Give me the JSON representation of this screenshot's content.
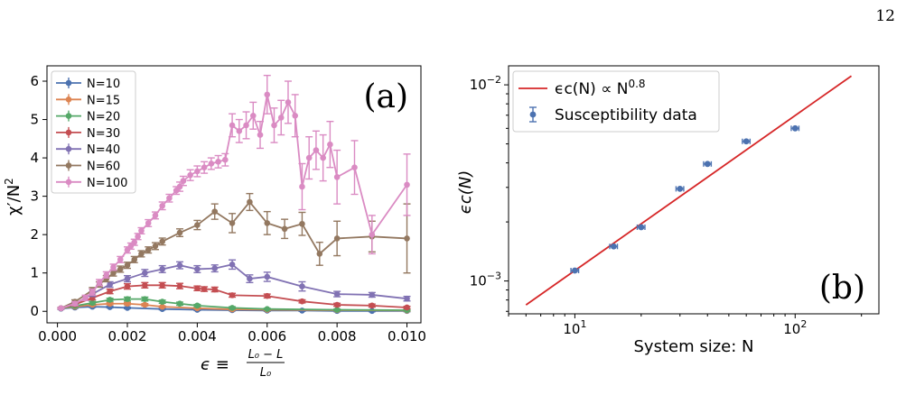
{
  "page_number": "12",
  "colors": {
    "N10": "#4c72b0",
    "N15": "#dd8452",
    "N20": "#55a868",
    "N30": "#c44e52",
    "N40": "#8172b3",
    "N60": "#937860",
    "N100": "#da8bc3",
    "fit": "#d62728",
    "data": "#4c72b0"
  },
  "chart_data": [
    {
      "type": "line",
      "panel_label": "(a)",
      "xlabel_parts": {
        "epsilon": "ϵ ≡",
        "numerator": "L₀ − L",
        "denominator": "L₀"
      },
      "ylabel_parts": {
        "base": "χ′/N",
        "exp": "2"
      },
      "xlim": [
        -0.0003,
        0.0104
      ],
      "ylim": [
        -0.3,
        6.4
      ],
      "xticks": [
        0.0,
        0.002,
        0.004,
        0.006,
        0.008,
        0.01
      ],
      "xtick_labels": [
        "0.000",
        "0.002",
        "0.004",
        "0.006",
        "0.008",
        "0.010"
      ],
      "yticks": [
        0,
        1,
        2,
        3,
        4,
        5,
        6
      ],
      "ytick_labels": [
        "0",
        "1",
        "2",
        "3",
        "4",
        "5",
        "6"
      ],
      "legend_position": "top-left",
      "series": [
        {
          "name": "N=10",
          "color_key": "N10",
          "x": [
            0.0001,
            0.0005,
            0.001,
            0.0015,
            0.002,
            0.003,
            0.004,
            0.005,
            0.006,
            0.007,
            0.008,
            0.009,
            0.01
          ],
          "y": [
            0.07,
            0.1,
            0.12,
            0.11,
            0.09,
            0.06,
            0.04,
            0.03,
            0.02,
            0.02,
            0.01,
            0.01,
            0.01
          ],
          "err": [
            0.02,
            0.02,
            0.02,
            0.02,
            0.02,
            0.02,
            0.02,
            0.02,
            0.02,
            0.02,
            0.02,
            0.02,
            0.02
          ]
        },
        {
          "name": "N=15",
          "color_key": "N15",
          "x": [
            0.0001,
            0.0005,
            0.001,
            0.0015,
            0.002,
            0.0025,
            0.003,
            0.004,
            0.005,
            0.006,
            0.008,
            0.01
          ],
          "y": [
            0.08,
            0.12,
            0.17,
            0.2,
            0.2,
            0.17,
            0.12,
            0.08,
            0.05,
            0.04,
            0.03,
            0.02
          ],
          "err": [
            0.02,
            0.02,
            0.03,
            0.03,
            0.03,
            0.03,
            0.02,
            0.02,
            0.02,
            0.02,
            0.02,
            0.02
          ]
        },
        {
          "name": "N=20",
          "color_key": "N20",
          "x": [
            0.0001,
            0.0005,
            0.001,
            0.0015,
            0.002,
            0.0025,
            0.003,
            0.0035,
            0.004,
            0.005,
            0.006,
            0.008,
            0.01
          ],
          "y": [
            0.08,
            0.14,
            0.22,
            0.3,
            0.32,
            0.32,
            0.25,
            0.2,
            0.15,
            0.09,
            0.06,
            0.04,
            0.03
          ],
          "err": [
            0.02,
            0.03,
            0.04,
            0.04,
            0.05,
            0.05,
            0.04,
            0.04,
            0.03,
            0.03,
            0.02,
            0.02,
            0.02
          ]
        },
        {
          "name": "N=30",
          "color_key": "N30",
          "x": [
            0.0001,
            0.0005,
            0.001,
            0.0015,
            0.002,
            0.0025,
            0.003,
            0.0035,
            0.004,
            0.0042,
            0.0045,
            0.005,
            0.006,
            0.007,
            0.008,
            0.009,
            0.01
          ],
          "y": [
            0.08,
            0.18,
            0.35,
            0.52,
            0.65,
            0.68,
            0.68,
            0.66,
            0.6,
            0.58,
            0.57,
            0.42,
            0.4,
            0.26,
            0.17,
            0.15,
            0.1
          ],
          "err": [
            0.02,
            0.04,
            0.05,
            0.06,
            0.07,
            0.07,
            0.07,
            0.07,
            0.06,
            0.06,
            0.06,
            0.05,
            0.05,
            0.04,
            0.04,
            0.04,
            0.03
          ]
        },
        {
          "name": "N=40",
          "color_key": "N40",
          "x": [
            0.0001,
            0.0005,
            0.001,
            0.0015,
            0.002,
            0.0025,
            0.003,
            0.0035,
            0.004,
            0.0045,
            0.005,
            0.0055,
            0.006,
            0.007,
            0.008,
            0.009,
            0.01
          ],
          "y": [
            0.08,
            0.2,
            0.45,
            0.7,
            0.85,
            1.0,
            1.1,
            1.2,
            1.1,
            1.12,
            1.22,
            0.85,
            0.9,
            0.65,
            0.45,
            0.43,
            0.33
          ],
          "err": [
            0.02,
            0.04,
            0.06,
            0.07,
            0.08,
            0.09,
            0.09,
            0.09,
            0.09,
            0.09,
            0.12,
            0.1,
            0.12,
            0.12,
            0.07,
            0.06,
            0.06
          ]
        },
        {
          "name": "N=60",
          "color_key": "N60",
          "x": [
            0.0001,
            0.0005,
            0.001,
            0.0012,
            0.0014,
            0.0016,
            0.0018,
            0.002,
            0.0022,
            0.0024,
            0.0026,
            0.0028,
            0.003,
            0.0035,
            0.004,
            0.0045,
            0.005,
            0.0055,
            0.006,
            0.0065,
            0.007,
            0.0075,
            0.008,
            0.009,
            0.01
          ],
          "y": [
            0.08,
            0.25,
            0.55,
            0.7,
            0.85,
            1.0,
            1.1,
            1.2,
            1.35,
            1.5,
            1.6,
            1.7,
            1.82,
            2.05,
            2.25,
            2.6,
            2.3,
            2.85,
            2.3,
            2.15,
            2.28,
            1.5,
            1.9,
            1.95,
            1.9
          ],
          "err": [
            0.02,
            0.05,
            0.07,
            0.07,
            0.08,
            0.08,
            0.08,
            0.08,
            0.08,
            0.08,
            0.08,
            0.09,
            0.09,
            0.1,
            0.12,
            0.2,
            0.25,
            0.22,
            0.3,
            0.25,
            0.3,
            0.3,
            0.45,
            0.4,
            0.9
          ]
        },
        {
          "name": "N=100",
          "color_key": "N100",
          "x": [
            0.0001,
            0.0005,
            0.0008,
            0.001,
            0.0012,
            0.0014,
            0.0016,
            0.0018,
            0.002,
            0.0021,
            0.0022,
            0.0023,
            0.0024,
            0.0026,
            0.0028,
            0.003,
            0.0032,
            0.0034,
            0.0035,
            0.0036,
            0.0038,
            0.004,
            0.0042,
            0.0044,
            0.0046,
            0.0048,
            0.005,
            0.0052,
            0.0054,
            0.0056,
            0.0058,
            0.006,
            0.0062,
            0.0064,
            0.0066,
            0.0068,
            0.007,
            0.0072,
            0.0074,
            0.0076,
            0.0078,
            0.008,
            0.0085,
            0.009,
            0.01
          ],
          "y": [
            0.08,
            0.2,
            0.35,
            0.5,
            0.75,
            0.95,
            1.15,
            1.35,
            1.6,
            1.7,
            1.8,
            1.95,
            2.1,
            2.3,
            2.5,
            2.75,
            2.95,
            3.15,
            3.25,
            3.4,
            3.55,
            3.65,
            3.75,
            3.85,
            3.9,
            3.95,
            4.85,
            4.7,
            4.85,
            5.1,
            4.6,
            5.65,
            4.85,
            5.05,
            5.45,
            5.1,
            3.25,
            4.0,
            4.2,
            4.0,
            4.35,
            3.5,
            3.75,
            2.0,
            3.3
          ],
          "err": [
            0.02,
            0.05,
            0.07,
            0.08,
            0.08,
            0.08,
            0.08,
            0.08,
            0.08,
            0.08,
            0.08,
            0.08,
            0.08,
            0.09,
            0.09,
            0.1,
            0.1,
            0.1,
            0.12,
            0.12,
            0.14,
            0.14,
            0.15,
            0.15,
            0.16,
            0.16,
            0.3,
            0.3,
            0.35,
            0.35,
            0.35,
            0.5,
            0.45,
            0.45,
            0.55,
            0.55,
            0.6,
            0.55,
            0.5,
            0.6,
            0.6,
            0.7,
            0.7,
            0.5,
            0.8
          ]
        }
      ]
    },
    {
      "type": "scatter",
      "panel_label": "(b)",
      "xlabel": "System size: N",
      "ylabel": "ϵc(N)",
      "xscale": "log",
      "yscale": "log",
      "xlim": [
        5,
        240
      ],
      "ylim": [
        0.00068,
        0.0125
      ],
      "xticks": [
        10,
        100
      ],
      "xtick_labels": [
        {
          "base": "10",
          "exp": "1"
        },
        {
          "base": "10",
          "exp": "2"
        }
      ],
      "yticks": [
        0.001,
        0.01
      ],
      "ytick_labels": [
        {
          "base": "10",
          "exp": "−3"
        },
        {
          "base": "10",
          "exp": "−2"
        }
      ],
      "legend_position": "top-left",
      "legend": [
        {
          "kind": "line",
          "label": "ϵc(N) ∝ N",
          "label_exp": "0.8",
          "color_key": "fit"
        },
        {
          "kind": "errorbar",
          "label": "Susceptibility data",
          "color_key": "data"
        }
      ],
      "fit_line": {
        "x": [
          6,
          180
        ],
        "y": [
          0.000755,
          0.0111
        ]
      },
      "series": [
        {
          "name": "Susceptibility data",
          "x": [
            10,
            15,
            20,
            30,
            40,
            60,
            100
          ],
          "y": [
            0.00113,
            0.0015,
            0.00188,
            0.00295,
            0.00395,
            0.00515,
            0.006
          ],
          "xerr_frac": 0.04
        }
      ]
    }
  ]
}
